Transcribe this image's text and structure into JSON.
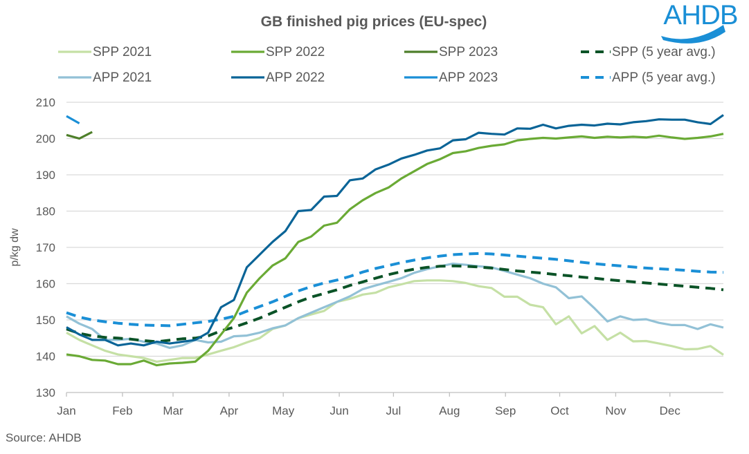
{
  "chart_data": {
    "type": "line",
    "title": "GB finished pig prices (EU-spec)",
    "ylabel": "p/kg dw",
    "xlabel": "",
    "source": "Source: AHDB",
    "logo_text": "AHDB",
    "ylim": [
      130,
      210
    ],
    "yticks": [
      130,
      140,
      150,
      160,
      170,
      180,
      190,
      200,
      210
    ],
    "x_unit": "week of year",
    "month_labels": [
      "Jan",
      "Feb",
      "Mar",
      "Apr",
      "May",
      "Jun",
      "Jul",
      "Aug",
      "Sep",
      "Oct",
      "Nov",
      "Dec"
    ],
    "grid": true,
    "legend_position": "top",
    "series": [
      {
        "name": "SPP 2021",
        "color": "#c5e0a5",
        "dashed": false,
        "values": [
          146.5,
          144.5,
          143,
          141.5,
          140.5,
          140,
          139.5,
          138.5,
          139,
          139.5,
          139.5,
          140.5,
          141.5,
          142.5,
          143.8,
          145,
          147.5,
          148.5,
          150.5,
          151.5,
          152.5,
          155,
          155.8,
          157,
          157.5,
          159,
          159.8,
          160.7,
          160.9,
          160.9,
          160.7,
          160.2,
          159.3,
          158.8,
          156.4,
          156.4,
          154.2,
          153.5,
          148.8,
          151,
          146.3,
          148.3,
          144.5,
          146.5,
          144.1,
          144.2,
          143.5,
          142.8,
          141.9,
          142,
          142.8,
          140.4
        ]
      },
      {
        "name": "SPP 2022",
        "color": "#6aaa35",
        "dashed": false,
        "values": [
          140.5,
          140,
          139,
          138.8,
          137.8,
          137.8,
          138.8,
          137.5,
          138,
          138.2,
          138.5,
          141.5,
          146,
          150.5,
          157.5,
          161.5,
          165,
          167,
          171.5,
          173,
          176,
          176.8,
          180.5,
          183,
          185,
          186.5,
          189,
          191,
          193,
          194.3,
          196,
          196.5,
          197.4,
          198,
          198.4,
          199.5,
          199.9,
          200.2,
          200,
          200.3,
          200.6,
          200.2,
          200.5,
          200.3,
          200.5,
          200.3,
          200.8,
          200.3,
          199.9,
          200.2,
          200.6,
          201.3
        ]
      },
      {
        "name": "SPP 2023",
        "color": "#4e7f2a",
        "dashed": false,
        "values": [
          201,
          200,
          201.8
        ]
      },
      {
        "name": "SPP (5 year avg.)",
        "color": "#0b5327",
        "dashed": true,
        "values": [
          147.5,
          146.3,
          145.6,
          145.2,
          145,
          144.7,
          144.3,
          144,
          144.4,
          144.8,
          145,
          145.6,
          147,
          148,
          149.2,
          150.5,
          152,
          153.5,
          155,
          156.3,
          157.3,
          158.3,
          159.5,
          160.5,
          161.5,
          162.5,
          163.3,
          164,
          164.5,
          164.8,
          164.9,
          164.8,
          164.6,
          164.3,
          163.9,
          163.5,
          163.2,
          162.9,
          162.5,
          162.2,
          161.8,
          161.5,
          161.1,
          160.8,
          160.5,
          160.2,
          159.9,
          159.6,
          159.3,
          159,
          158.7,
          158.3
        ]
      },
      {
        "name": "APP 2021",
        "color": "#92c1d6",
        "dashed": false,
        "values": [
          151,
          149,
          147.5,
          144.5,
          144.5,
          144.8,
          144,
          143.5,
          142.3,
          143,
          144.5,
          143.8,
          144,
          145.5,
          145.7,
          146.5,
          147.7,
          148.5,
          150.5,
          152,
          153.5,
          155,
          156.5,
          158.5,
          159.5,
          160.5,
          161.5,
          163,
          164,
          164.8,
          165.5,
          165.2,
          164.8,
          164.5,
          163.5,
          162.5,
          161.5,
          160,
          159,
          156,
          156.5,
          153.2,
          149.6,
          151,
          150,
          150.2,
          149.2,
          148.6,
          148.6,
          147.5,
          148.8,
          147.9
        ]
      },
      {
        "name": "APP 2022",
        "color": "#0a6497",
        "dashed": false,
        "values": [
          148,
          146,
          144.5,
          144.5,
          143,
          143.5,
          143,
          144,
          143.5,
          144,
          144.5,
          146.5,
          153.5,
          155.5,
          164.5,
          168,
          171.5,
          174.5,
          180,
          180.3,
          184,
          184.2,
          188.5,
          189,
          191.5,
          192.8,
          194.5,
          195.5,
          196.7,
          197.3,
          199.5,
          199.8,
          201.6,
          201.3,
          201.1,
          202.8,
          202.7,
          203.8,
          202.8,
          203.5,
          203.8,
          203.6,
          204.1,
          203.9,
          204.5,
          204.8,
          205.3,
          205.2,
          205.2,
          204.5,
          204,
          206.5
        ]
      },
      {
        "name": "APP 2023",
        "color": "#1a8fd6",
        "dashed": false,
        "values": [
          206.2,
          204.2
        ]
      },
      {
        "name": "APP (5 year avg.)",
        "color": "#1a8fd6",
        "dashed": true,
        "values": [
          152,
          150.8,
          150,
          149.5,
          149.1,
          148.8,
          148.6,
          148.5,
          148.4,
          148.8,
          149.2,
          149.6,
          150.2,
          151,
          152.4,
          153.7,
          155,
          156.5,
          158,
          159.2,
          160.2,
          161,
          162,
          163.2,
          164.2,
          165,
          165.8,
          166.5,
          167.1,
          167.6,
          168,
          168.2,
          168.3,
          168.2,
          167.9,
          167.6,
          167.3,
          167,
          166.7,
          166.3,
          165.9,
          165.5,
          165.2,
          164.9,
          164.6,
          164.3,
          164.1,
          163.9,
          163.7,
          163.4,
          163.2,
          163.1
        ]
      }
    ]
  }
}
